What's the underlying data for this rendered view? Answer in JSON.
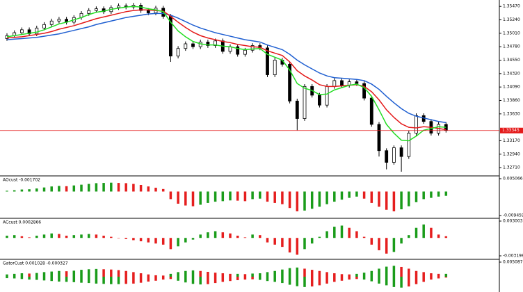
{
  "chart_data": [
    {
      "type": "candlestick",
      "open": [
        1.3492,
        1.3497,
        1.3502,
        1.3507,
        1.35,
        1.351,
        1.3516,
        1.3522,
        1.3525,
        1.352,
        1.3528,
        1.3535,
        1.354,
        1.3543,
        1.3538,
        1.3545,
        1.3548,
        1.3546,
        1.3549,
        1.354,
        1.3536,
        1.3544,
        1.353,
        1.3462,
        1.3475,
        1.3483,
        1.3478,
        1.3486,
        1.348,
        1.3488,
        1.347,
        1.3478,
        1.3465,
        1.3472,
        1.348,
        1.3476,
        1.343,
        1.3455,
        1.3448,
        1.3385,
        1.3355,
        1.341,
        1.3395,
        1.3378,
        1.341,
        1.342,
        1.3412,
        1.3418,
        1.3415,
        1.339,
        1.3345,
        1.33,
        1.328,
        1.3305,
        1.329,
        1.333,
        1.336,
        1.335,
        1.333,
        1.3345
      ],
      "high": [
        1.3501,
        1.3506,
        1.3511,
        1.3511,
        1.3514,
        1.352,
        1.3526,
        1.3529,
        1.3529,
        1.3532,
        1.3539,
        1.3544,
        1.3547,
        1.3547,
        1.3549,
        1.3552,
        1.3552,
        1.3553,
        1.3553,
        1.3544,
        1.3548,
        1.3548,
        1.3534,
        1.3479,
        1.3487,
        1.3487,
        1.349,
        1.349,
        1.3492,
        1.3492,
        1.3482,
        1.3482,
        1.3476,
        1.3484,
        1.3484,
        1.348,
        1.3459,
        1.3459,
        1.3452,
        1.3389,
        1.3414,
        1.3414,
        1.3399,
        1.3414,
        1.3424,
        1.3424,
        1.3422,
        1.3422,
        1.3419,
        1.3394,
        1.3349,
        1.3304,
        1.3309,
        1.3309,
        1.3334,
        1.3364,
        1.3364,
        1.3354,
        1.3349,
        1.3349
      ],
      "low": [
        1.3488,
        1.3493,
        1.3498,
        1.3496,
        1.3496,
        1.3506,
        1.3512,
        1.3518,
        1.3516,
        1.3516,
        1.3524,
        1.3531,
        1.3536,
        1.3534,
        1.3534,
        1.3541,
        1.3542,
        1.3542,
        1.3536,
        1.3532,
        1.3532,
        1.3526,
        1.3452,
        1.3458,
        1.3471,
        1.3474,
        1.3474,
        1.3476,
        1.3476,
        1.3466,
        1.3466,
        1.3461,
        1.3461,
        1.3468,
        1.3472,
        1.3426,
        1.3426,
        1.3444,
        1.3381,
        1.3335,
        1.3351,
        1.3391,
        1.3374,
        1.3374,
        1.3406,
        1.3408,
        1.3408,
        1.3411,
        1.3386,
        1.3341,
        1.329,
        1.3268,
        1.3276,
        1.3264,
        1.3286,
        1.3326,
        1.3346,
        1.3326,
        1.3326,
        1.3331
      ],
      "close": [
        1.3497,
        1.3502,
        1.3507,
        1.35,
        1.351,
        1.3516,
        1.3522,
        1.3525,
        1.352,
        1.3528,
        1.3535,
        1.354,
        1.3543,
        1.3538,
        1.3545,
        1.3548,
        1.3546,
        1.3549,
        1.354,
        1.3536,
        1.3544,
        1.353,
        1.3462,
        1.3475,
        1.3483,
        1.3478,
        1.3486,
        1.348,
        1.3488,
        1.347,
        1.3478,
        1.3465,
        1.3472,
        1.348,
        1.3476,
        1.343,
        1.3455,
        1.3448,
        1.3385,
        1.3355,
        1.341,
        1.3395,
        1.3378,
        1.341,
        1.342,
        1.3412,
        1.3418,
        1.3415,
        1.339,
        1.3345,
        1.33,
        1.328,
        1.3305,
        1.329,
        1.333,
        1.336,
        1.335,
        1.333,
        1.3345,
        1.3335
      ],
      "up_color": "#ffffff",
      "down_color": "#000000",
      "series": [
        {
          "color": "#1f5fd1",
          "values": [
            1.349,
            1.3491,
            1.3492,
            1.3493,
            1.3494,
            1.3496,
            1.3498,
            1.35,
            1.3503,
            1.3506,
            1.3509,
            1.3512,
            1.3516,
            1.3519,
            1.3522,
            1.3525,
            1.3528,
            1.353,
            1.3532,
            1.3534,
            1.3535,
            1.3535,
            1.3532,
            1.3527,
            1.3521,
            1.3515,
            1.351,
            1.3506,
            1.3502,
            1.3499,
            1.3496,
            1.3493,
            1.349,
            1.3488,
            1.3486,
            1.3481,
            1.3477,
            1.3473,
            1.3465,
            1.3455,
            1.3447,
            1.344,
            1.3433,
            1.3428,
            1.3425,
            1.3424,
            1.3423,
            1.3422,
            1.342,
            1.3414,
            1.3405,
            1.3393,
            1.3382,
            1.3372,
            1.3364,
            1.3359,
            1.3356,
            1.3353,
            1.335,
            1.3348
          ]
        },
        {
          "color": "#e41a1a",
          "values": [
            1.3493,
            1.3494,
            1.3495,
            1.3497,
            1.3499,
            1.3501,
            1.3504,
            1.3508,
            1.3511,
            1.3514,
            1.3518,
            1.3522,
            1.3526,
            1.3529,
            1.3532,
            1.3535,
            1.3538,
            1.354,
            1.3541,
            1.3541,
            1.354,
            1.3539,
            1.353,
            1.352,
            1.3511,
            1.3503,
            1.3497,
            1.3493,
            1.349,
            1.3487,
            1.3485,
            1.3482,
            1.348,
            1.3478,
            1.3477,
            1.3471,
            1.3467,
            1.3463,
            1.3452,
            1.3437,
            1.3428,
            1.3421,
            1.3413,
            1.341,
            1.341,
            1.3411,
            1.3412,
            1.3413,
            1.341,
            1.3401,
            1.3387,
            1.337,
            1.3357,
            1.3346,
            1.334,
            1.3339,
            1.3341,
            1.334,
            1.3338,
            1.3336
          ]
        },
        {
          "color": "#22dd22",
          "values": [
            1.3495,
            1.3497,
            1.3499,
            1.3501,
            1.3503,
            1.3507,
            1.3512,
            1.3517,
            1.352,
            1.3524,
            1.3528,
            1.3533,
            1.3537,
            1.3539,
            1.3542,
            1.3544,
            1.3546,
            1.3547,
            1.3546,
            1.3543,
            1.3541,
            1.3538,
            1.352,
            1.3505,
            1.3495,
            1.3487,
            1.3483,
            1.3481,
            1.3481,
            1.3479,
            1.3478,
            1.3475,
            1.3473,
            1.3474,
            1.3475,
            1.3465,
            1.346,
            1.3455,
            1.3438,
            1.3415,
            1.3407,
            1.3403,
            1.3396,
            1.3397,
            1.3404,
            1.3408,
            1.3412,
            1.3414,
            1.3408,
            1.3393,
            1.337,
            1.3345,
            1.333,
            1.3318,
            1.3317,
            1.3325,
            1.3335,
            1.3338,
            1.3341,
            1.334
          ]
        }
      ],
      "last_price": 1.33345,
      "last_price_color": "#e41a1a",
      "ylim": [
        1.3258,
        1.3558
      ],
      "yticks": [
        {
          "value": 1.3547,
          "label": "1.35470"
        },
        {
          "value": 1.3524,
          "label": "1.35240"
        },
        {
          "value": 1.3501,
          "label": "1.35010"
        },
        {
          "value": 1.3478,
          "label": "1.34780"
        },
        {
          "value": 1.3455,
          "label": "1.34550"
        },
        {
          "value": 1.3432,
          "label": "1.34320"
        },
        {
          "value": 1.3409,
          "label": "1.34090"
        },
        {
          "value": 1.3386,
          "label": "1.33860"
        },
        {
          "value": 1.3363,
          "label": "1.33630"
        },
        {
          "value": 1.3317,
          "label": "1.33170"
        },
        {
          "value": 1.3294,
          "label": "1.32940"
        },
        {
          "value": 1.3271,
          "label": "1.32710"
        }
      ]
    },
    {
      "type": "bar",
      "title": "AOcust -0.001702",
      "up_color": "#1a9c1a",
      "down_color": "#e51e1e",
      "values": [
        0.0003,
        0.0005,
        0.0008,
        0.0009,
        0.0012,
        0.0016,
        0.002,
        0.0022,
        0.0021,
        0.0024,
        0.0027,
        0.003,
        0.0033,
        0.0034,
        0.0035,
        0.0034,
        0.0033,
        0.003,
        0.0026,
        0.002,
        0.0015,
        0.001,
        -0.003,
        -0.0048,
        -0.0055,
        -0.0058,
        -0.0052,
        -0.0045,
        -0.004,
        -0.0038,
        -0.0035,
        -0.0036,
        -0.0038,
        -0.003,
        -0.0028,
        -0.004,
        -0.0045,
        -0.005,
        -0.0065,
        -0.0078,
        -0.0075,
        -0.0068,
        -0.006,
        -0.005,
        -0.004,
        -0.0032,
        -0.0025,
        -0.002,
        -0.0028,
        -0.0045,
        -0.006,
        -0.0072,
        -0.0078,
        -0.007,
        -0.0058,
        -0.0042,
        -0.003,
        -0.0025,
        -0.002,
        -0.0017
      ],
      "ylim": [
        -0.009459,
        0.005066
      ],
      "yticks": [
        0.005066,
        -0.009459
      ]
    },
    {
      "type": "bar",
      "title": "ACcust 0.0002866",
      "up_color": "#1a9c1a",
      "down_color": "#e51e1e",
      "values": [
        0.0004,
        0.0005,
        0.0003,
        0.0001,
        0.0004,
        0.0006,
        0.0008,
        0.0007,
        0.0004,
        0.0005,
        0.0006,
        0.0007,
        0.0006,
        0.0004,
        0.0002,
        0.0,
        -0.0002,
        -0.0004,
        -0.0006,
        -0.0008,
        -0.001,
        -0.0012,
        -0.002,
        -0.0015,
        -0.0008,
        -0.0003,
        0.0006,
        0.001,
        0.0012,
        0.001,
        0.0008,
        0.0004,
        0.0001,
        0.0006,
        0.0005,
        -0.0008,
        -0.0012,
        -0.0016,
        -0.0026,
        -0.003,
        -0.002,
        -0.001,
        0.0002,
        0.0012,
        0.002,
        0.0022,
        0.0018,
        0.0012,
        0.0002,
        -0.0012,
        -0.0022,
        -0.0028,
        -0.0025,
        -0.001,
        0.0005,
        0.0018,
        0.0024,
        0.0018,
        0.0006,
        0.0003
      ],
      "ylim": [
        -0.0031988,
        0.0030039
      ],
      "yticks": [
        0.0030039,
        -0.0031988
      ]
    },
    {
      "type": "bar",
      "title": "GatorCust 0.001028 -0.000327",
      "up_color": "#1a9c1a",
      "down_color": "#e51e1e",
      "series": [
        {
          "values": [
            0.0008,
            0.001,
            0.0012,
            0.0011,
            0.0013,
            0.0016,
            0.0018,
            0.002,
            0.0019,
            0.0021,
            0.0024,
            0.0026,
            0.0027,
            0.0026,
            0.0025,
            0.0023,
            0.002,
            0.0016,
            0.0012,
            0.0008,
            0.0005,
            0.0004,
            0.001,
            0.0016,
            0.002,
            0.0022,
            0.002,
            0.0017,
            0.0014,
            0.0012,
            0.001,
            0.001,
            0.0009,
            0.0011,
            0.0012,
            0.0016,
            0.002,
            0.0025,
            0.003,
            0.0032,
            0.0028,
            0.0024,
            0.002,
            0.0016,
            0.0012,
            0.0009,
            0.0008,
            0.001,
            0.0014,
            0.002,
            0.0028,
            0.0035,
            0.0038,
            0.0034,
            0.0028,
            0.002,
            0.0016,
            0.0012,
            0.001,
            0.001
          ]
        },
        {
          "values": [
            -0.0005,
            -0.0006,
            -0.0008,
            -0.001,
            -0.0011,
            -0.0013,
            -0.0015,
            -0.0017,
            -0.0018,
            -0.0019,
            -0.0021,
            -0.0022,
            -0.0024,
            -0.0025,
            -0.0026,
            -0.0026,
            -0.0025,
            -0.0024,
            -0.0021,
            -0.0017,
            -0.0014,
            -0.001,
            -0.0008,
            -0.0014,
            -0.002,
            -0.0025,
            -0.0027,
            -0.0026,
            -0.0022,
            -0.0018,
            -0.0015,
            -0.0012,
            -0.001,
            -0.0009,
            -0.0011,
            -0.0015,
            -0.0018,
            -0.0022,
            -0.0028,
            -0.0033,
            -0.0036,
            -0.0034,
            -0.003,
            -0.0024,
            -0.0018,
            -0.0014,
            -0.001,
            -0.0008,
            -0.001,
            -0.0016,
            -0.0024,
            -0.003,
            -0.0036,
            -0.0038,
            -0.0034,
            -0.0026,
            -0.0018,
            -0.001,
            -0.0006,
            -0.0003
          ]
        }
      ],
      "ylim": [
        -0.005087,
        0.005087
      ],
      "yticks": [
        0.005087
      ]
    }
  ]
}
